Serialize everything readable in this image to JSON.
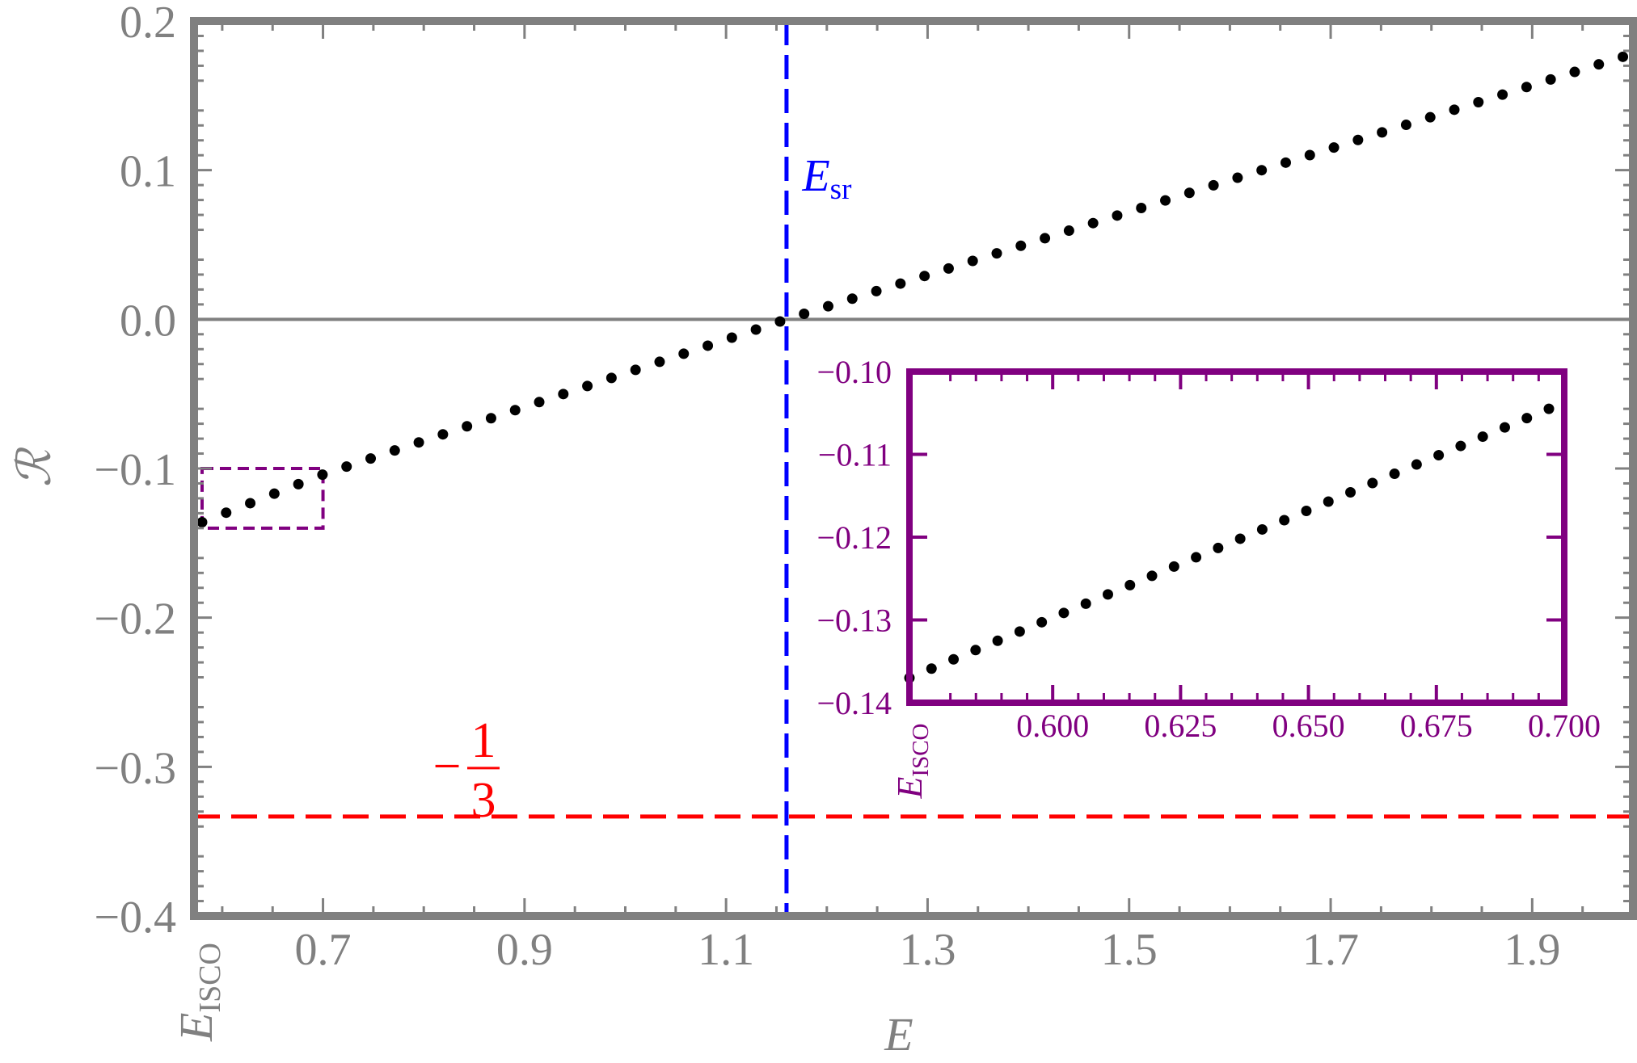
{
  "chart_data": [
    {
      "type": "scatter",
      "xlabel": "E",
      "ylabel": "ℛ",
      "xlim": [
        0.572,
        2.0
      ],
      "ylim": [
        -0.4,
        0.2
      ],
      "xticks": [
        "0.7",
        "0.9",
        "1.1",
        "1.3",
        "1.5",
        "1.7",
        "1.9"
      ],
      "xtick_values": [
        0.7,
        0.9,
        1.1,
        1.3,
        1.5,
        1.7,
        1.9
      ],
      "yticks": [
        "0.2",
        "0.1",
        "0.0",
        "−0.1",
        "−0.2",
        "−0.3",
        "−0.4"
      ],
      "ytick_values": [
        0.2,
        0.1,
        0.0,
        -0.1,
        -0.2,
        -0.3,
        -0.4
      ],
      "x_start_label": {
        "main": "E",
        "sub": "ISCO",
        "value": 0.572
      },
      "series": [
        {
          "marker": "dot",
          "color": "#000000",
          "x_range": [
            0.58,
            1.99
          ],
          "count": 60,
          "y_at_x": [
            [
              0.58,
              -0.136
            ],
            [
              0.7,
              -0.104
            ],
            [
              1.16,
              0.0
            ],
            [
              1.99,
              0.176
            ]
          ]
        }
      ],
      "reference_lines": [
        {
          "orientation": "horizontal",
          "y": 0.0,
          "style": "solid",
          "color": "#808080"
        },
        {
          "orientation": "horizontal",
          "y": -0.3333,
          "style": "dashed",
          "color": "#ff0000",
          "label_sign": "−",
          "label_num": "1",
          "label_den": "3"
        },
        {
          "orientation": "vertical",
          "x": 1.16,
          "style": "dashed",
          "color": "#0000ff",
          "label_main": "E",
          "label_sub": "sr"
        }
      ],
      "highlight_box": {
        "x": [
          0.58,
          0.7
        ],
        "y": [
          -0.14,
          -0.1
        ],
        "style": "dashed",
        "color": "#800080"
      },
      "grid": false,
      "colors": {
        "frame": "#808080",
        "ticks": "#808080"
      }
    },
    {
      "type": "scatter",
      "role": "inset",
      "xlim": [
        0.572,
        0.7
      ],
      "ylim": [
        -0.14,
        -0.1
      ],
      "xticks": [
        "0.600",
        "0.625",
        "0.650",
        "0.675",
        "0.700"
      ],
      "xtick_values": [
        0.6,
        0.625,
        0.65,
        0.675,
        0.7
      ],
      "yticks": [
        "−0.10",
        "−0.11",
        "−0.12",
        "−0.13",
        "−0.14"
      ],
      "ytick_values": [
        -0.1,
        -0.11,
        -0.12,
        -0.13,
        -0.14
      ],
      "x_start_label": {
        "main": "E",
        "sub": "ISCO",
        "value": 0.572
      },
      "series": [
        {
          "marker": "dot",
          "color": "#000000",
          "x_range": [
            0.572,
            0.697
          ],
          "count": 30,
          "y_at_x": [
            [
              0.572,
              -0.137
            ],
            [
              0.697,
              -0.1045
            ]
          ]
        }
      ],
      "grid": false,
      "colors": {
        "frame": "#800080",
        "ticks": "#800080"
      }
    }
  ]
}
